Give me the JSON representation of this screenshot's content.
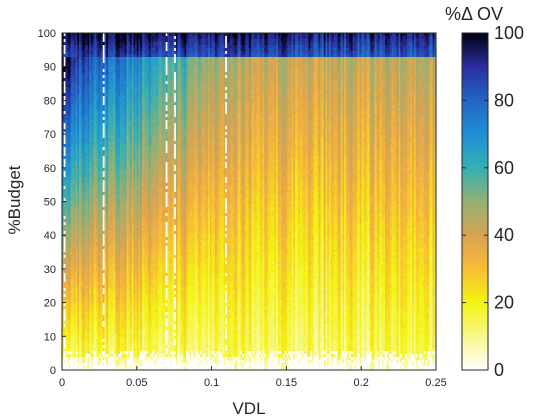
{
  "chart_data": {
    "type": "heatmap",
    "xlabel": "VDL",
    "ylabel": "%Budget",
    "xlim": [
      0,
      0.25
    ],
    "ylim": [
      0,
      100
    ],
    "x_ticks": [
      {
        "value": 0,
        "label": "0"
      },
      {
        "value": 0.05,
        "label": "0.05"
      },
      {
        "value": 0.1,
        "label": "0.1"
      },
      {
        "value": 0.15,
        "label": "0.15"
      },
      {
        "value": 0.2,
        "label": "0.2"
      },
      {
        "value": 0.25,
        "label": "0.25"
      }
    ],
    "y_ticks": [
      {
        "value": 0,
        "label": "0"
      },
      {
        "value": 10,
        "label": "10"
      },
      {
        "value": 20,
        "label": "20"
      },
      {
        "value": 30,
        "label": "30"
      },
      {
        "value": 40,
        "label": "40"
      },
      {
        "value": 50,
        "label": "50"
      },
      {
        "value": 60,
        "label": "60"
      },
      {
        "value": 70,
        "label": "70"
      },
      {
        "value": 80,
        "label": "80"
      },
      {
        "value": 90,
        "label": "90"
      },
      {
        "value": 100,
        "label": "100"
      }
    ],
    "colorbar": {
      "title": "%Δ OV",
      "range": [
        0,
        100
      ],
      "ticks": [
        {
          "value": 0,
          "label": "0"
        },
        {
          "value": 20,
          "label": "20"
        },
        {
          "value": 40,
          "label": "40"
        },
        {
          "value": 60,
          "label": "60"
        },
        {
          "value": 80,
          "label": "80"
        },
        {
          "value": 100,
          "label": "100"
        }
      ],
      "colormap": [
        {
          "value": 0,
          "color": "#ffffff"
        },
        {
          "value": 10,
          "color": "#f7f78a"
        },
        {
          "value": 20,
          "color": "#f4f410"
        },
        {
          "value": 32,
          "color": "#f6b43c"
        },
        {
          "value": 40,
          "color": "#d8a452"
        },
        {
          "value": 50,
          "color": "#94b073"
        },
        {
          "value": 60,
          "color": "#34b0b3"
        },
        {
          "value": 70,
          "color": "#1f8fd4"
        },
        {
          "value": 80,
          "color": "#2266c4"
        },
        {
          "value": 90,
          "color": "#2a2e9e"
        },
        {
          "value": 100,
          "color": "#000010"
        }
      ]
    },
    "grid": false,
    "description_of_field": [
      {
        "region": "top edge (%Budget 93-100)",
        "value_range": [
          90,
          100
        ]
      },
      {
        "region": "left edge (VDL < 0.01, %Budget 60-90)",
        "value_range": [
          70,
          90
        ]
      },
      {
        "region": "upper-left (VDL < 0.05, %Budget 70-90)",
        "value_range": [
          60,
          80
        ]
      },
      {
        "region": "mid-left (VDL < 0.1, %Budget 40-70)",
        "value_range": [
          40,
          60
        ]
      },
      {
        "region": "lower area (%Budget 10-30)",
        "value_range": [
          15,
          30
        ]
      },
      {
        "region": "bottom (%Budget 0-5)",
        "value_range": [
          0,
          10
        ]
      },
      {
        "region": "right side (VDL > 0.15, %Budget 40-90)",
        "value_range": [
          30,
          45
        ]
      }
    ]
  }
}
